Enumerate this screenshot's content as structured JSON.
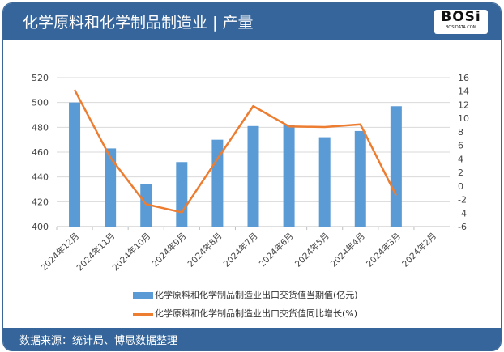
{
  "header": {
    "title": "化学原料和化学制品制造业 | 产量",
    "logo_text": "BOSi",
    "logo_sub": "BOSIDATA.COM"
  },
  "footer": {
    "source": "数据来源：统计局、博思数据整理"
  },
  "chart_data": {
    "type": "bar+line",
    "categories": [
      "2024年12月",
      "2024年11月",
      "2024年10月",
      "2024年9月",
      "2024年8月",
      "2024年7月",
      "2024年6月",
      "2024年5月",
      "2024年4月",
      "2024年3月",
      "2024年2月"
    ],
    "series": [
      {
        "name": "化学原料和化学制品制造业出口交货值当期值(亿元)",
        "type": "bar",
        "axis": "left",
        "color": "#5b9bd5",
        "values": [
          500,
          463,
          434,
          452,
          470,
          481,
          482,
          472,
          477,
          497,
          null
        ]
      },
      {
        "name": "化学原料和化学制品制造业出口交货值同比增长(%)",
        "type": "line",
        "axis": "right",
        "color": "#ed7d31",
        "values": [
          14.2,
          4.2,
          -2.7,
          -3.9,
          4.0,
          11.8,
          8.8,
          8.7,
          9.1,
          -1.4,
          null
        ]
      }
    ],
    "left_axis": {
      "ylim": [
        400,
        520
      ],
      "ticks": [
        400,
        420,
        440,
        460,
        480,
        500,
        520
      ]
    },
    "right_axis": {
      "ylim": [
        -6,
        16
      ],
      "ticks": [
        -6,
        -4,
        -2,
        0,
        2,
        4,
        6,
        8,
        10,
        12,
        14,
        16
      ]
    },
    "grid": true,
    "legend": "bottom"
  }
}
